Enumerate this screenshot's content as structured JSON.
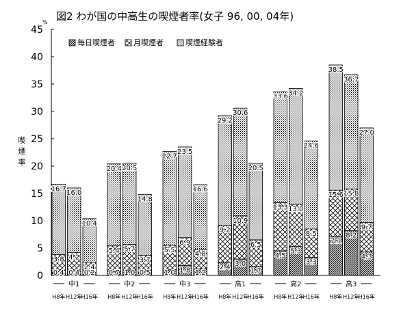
{
  "title": "図2 わが国の中高生の喫煙者率(女子 96, 00, 04年)",
  "chart_data": {
    "type": "bar",
    "stacked": true,
    "title": "図2 わが国の中高生の喫煙者率(女子 96, 00, 04年)",
    "ylabel": "喫煙率",
    "yunit": "%",
    "ylim": [
      0,
      45
    ],
    "yticks": [
      0,
      5,
      10,
      15,
      20,
      25,
      30,
      35,
      40,
      45
    ],
    "grid": false,
    "legend_position": "top-left",
    "groups": [
      "中1",
      "中2",
      "中3",
      "高1",
      "高2",
      "高3"
    ],
    "years": [
      "H8年",
      "H12年",
      "H16年"
    ],
    "series": [
      {
        "name": "毎日喫煙者",
        "pattern": "diagonal-hatch",
        "values": [
          [
            0.4,
            0.4,
            0.2
          ],
          [
            0.7,
            1.0,
            0.5
          ],
          [
            1.0,
            1.8,
            1.2
          ],
          [
            2.4,
            3.0,
            1.7
          ],
          [
            4.5,
            5.3,
            3.3
          ],
          [
            7.1,
            8.2,
            4.3
          ]
        ],
        "labels": [
          [
            "0.4",
            "0.4",
            "0.2"
          ],
          [
            "0.7",
            "1.0",
            "0.5"
          ],
          [
            "1.0",
            "1.8",
            "1.2"
          ],
          [
            "2.4",
            "3.0",
            "1.7"
          ],
          [
            "4.5",
            "5.3",
            "3.3"
          ],
          [
            "7.1",
            "8.2",
            "4.3"
          ]
        ]
      },
      {
        "name": "月喫煙者",
        "pattern": "cross-hatch",
        "values": [
          [
            3.8,
            4.2,
            2.4
          ],
          [
            5.4,
            5.7,
            3.7
          ],
          [
            5.5,
            6.9,
            4.8
          ],
          [
            9.2,
            10.9,
            6.5
          ],
          [
            13.3,
            13.0,
            8.5
          ],
          [
            15.6,
            15.8,
            9.7
          ]
        ],
        "labels": [
          [
            "3.8",
            "4.2",
            "2.4"
          ],
          [
            "5.4",
            "5.7",
            "3.7"
          ],
          [
            "5.5",
            "6.9",
            "4.8"
          ],
          [
            "9.2",
            "10.9",
            "6.5"
          ],
          [
            "13.3",
            "13.0",
            "8.5"
          ],
          [
            "15.6",
            "15.8",
            "9.7"
          ]
        ]
      },
      {
        "name": "喫煙経験者",
        "pattern": "dots",
        "values": [
          [
            16.7,
            16.0,
            10.4
          ],
          [
            20.4,
            20.5,
            14.8
          ],
          [
            22.7,
            23.5,
            16.6
          ],
          [
            29.2,
            30.6,
            20.5
          ],
          [
            33.6,
            34.2,
            24.6
          ],
          [
            38.5,
            36.7,
            27.0
          ]
        ],
        "labels": [
          [
            "16.7",
            "16.0",
            "10.4"
          ],
          [
            "20.4",
            "20.5",
            "14.8"
          ],
          [
            "22.7",
            "23.5",
            "16.6"
          ],
          [
            "29.2",
            "30.6",
            "20.5"
          ],
          [
            "33.6",
            "34.2",
            "24.6"
          ],
          [
            "38.5",
            "36.7",
            "27.0"
          ]
        ]
      }
    ]
  }
}
